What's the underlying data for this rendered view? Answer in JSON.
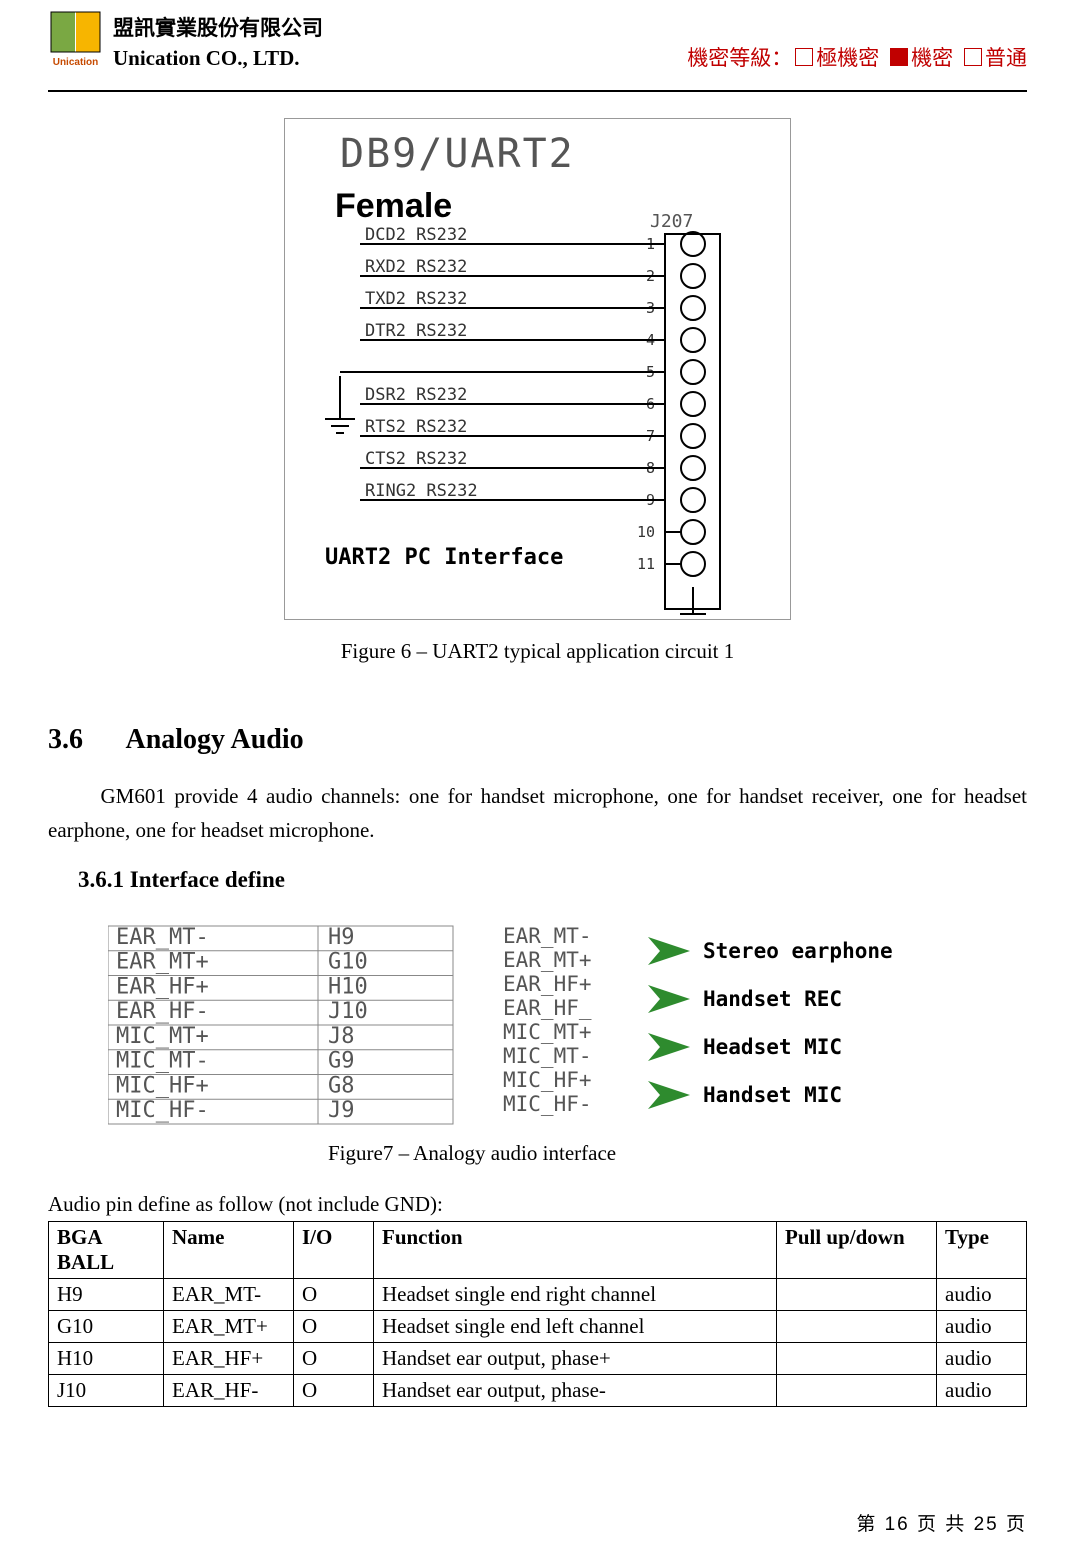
{
  "header": {
    "company_cn": "盟訊實業股份有限公司",
    "company_en": "Unication CO., LTD.",
    "logo_text": "Unication",
    "logo_colors": {
      "left": "#7aa843",
      "right": "#f7b500",
      "text": "#c64a00"
    },
    "secrecy_label": "機密等級：",
    "secrecy_levels": [
      {
        "label": "極機密",
        "filled": false
      },
      {
        "label": "機密",
        "filled": true
      },
      {
        "label": "普通",
        "filled": false
      }
    ],
    "secrecy_color": "#c00000"
  },
  "figure6": {
    "title": "DB9/UART2",
    "subtitle": "Female",
    "connector_ref": "J207",
    "pin_labels": [
      {
        "name": "DCD2_RS232",
        "num": "1"
      },
      {
        "name": "RXD2_RS232",
        "num": "2"
      },
      {
        "name": "TXD2_RS232",
        "num": "3"
      },
      {
        "name": "DTR2_RS232",
        "num": "4"
      },
      {
        "name": "",
        "num": "5"
      },
      {
        "name": "DSR2_RS232",
        "num": "6"
      },
      {
        "name": "RTS2_RS232",
        "num": "7"
      },
      {
        "name": "CTS2_RS232",
        "num": "8"
      },
      {
        "name": "RING2_RS232",
        "num": "9"
      },
      {
        "name": "",
        "num": "10"
      },
      {
        "name": "",
        "num": "11"
      }
    ],
    "interface_label": "UART2 PC Interface",
    "caption": "Figure 6 – UART2 typical application circuit 1"
  },
  "section_3_6": {
    "number": "3.6",
    "title": "Analogy Audio",
    "paragraph": "GM601 provide 4 audio channels: one for handset microphone, one for handset receiver, one for headset earphone, one for headset microphone."
  },
  "section_3_6_1": {
    "number": "3.6.1",
    "title": "Interface define"
  },
  "figure7": {
    "left_rows": [
      {
        "sig": "EAR_MT-",
        "ball": "H9"
      },
      {
        "sig": "EAR_MT+",
        "ball": "G10"
      },
      {
        "sig": "EAR_HF+",
        "ball": "H10"
      },
      {
        "sig": "EAR_HF-",
        "ball": "J10"
      },
      {
        "sig": "MIC_MT+",
        "ball": "J8"
      },
      {
        "sig": "MIC_MT-",
        "ball": "G9"
      },
      {
        "sig": "MIC_HF+",
        "ball": "G8"
      },
      {
        "sig": "MIC_HF-",
        "ball": "J9"
      }
    ],
    "right_groups": [
      {
        "sigs": [
          "EAR_MT-",
          "EAR_MT+"
        ],
        "label": "Stereo earphone"
      },
      {
        "sigs": [
          "EAR_HF+",
          "EAR_HF_"
        ],
        "label": "Handset REC"
      },
      {
        "sigs": [
          "MIC_MT+",
          "MIC_MT-"
        ],
        "label": "Headset MIC"
      },
      {
        "sigs": [
          "MIC_HF+",
          "MIC_HF-"
        ],
        "label": "Handset MIC"
      }
    ],
    "arrow_color": "#2e8b2e",
    "caption": "Figure7 – Analogy audio interface"
  },
  "pin_table": {
    "intro": "Audio pin define as follow (not include GND):",
    "columns": [
      "BGA BALL",
      "Name",
      "I/O",
      "Function",
      "Pull up/down",
      "Type"
    ],
    "rows": [
      [
        "H9",
        "EAR_MT-",
        "O",
        "Headset single end right channel",
        "",
        "audio"
      ],
      [
        "G10",
        "EAR_MT+",
        "O",
        "Headset single end left channel",
        "",
        "audio"
      ],
      [
        "H10",
        "EAR_HF+",
        "O",
        "Handset ear output, phase+",
        "",
        "audio"
      ],
      [
        "J10",
        "EAR_HF-",
        "O",
        "Handset ear output, phase-",
        "",
        "audio"
      ]
    ]
  },
  "footer": {
    "text": "第 16 页 共 25 页"
  }
}
